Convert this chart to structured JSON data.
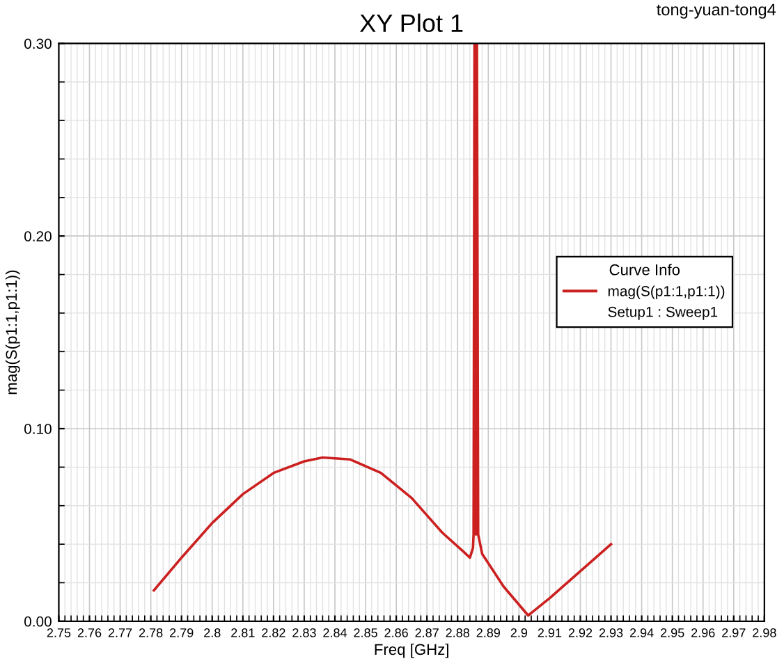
{
  "chart_data": {
    "type": "line",
    "title": "XY Plot 1",
    "xlabel": "Freq [GHz]",
    "ylabel": "mag(S(p1:1,p1:1))",
    "legend_title": "Curve Info",
    "annotations": [
      "tong-yuan-tong4",
      "Setup1 : Sweep1"
    ],
    "series": [
      {
        "name": "mag(S(p1:1,p1:1))",
        "color": "#cc2020",
        "x": [
          2.781,
          2.79,
          2.8,
          2.81,
          2.82,
          2.83,
          2.836,
          2.845,
          2.855,
          2.865,
          2.875,
          2.882,
          2.884,
          2.885,
          2.8852,
          2.8855,
          2.886,
          2.8863,
          2.8867,
          2.888,
          2.895,
          2.903,
          2.91,
          2.92,
          2.93
        ],
        "values": [
          0.016,
          0.033,
          0.051,
          0.066,
          0.077,
          0.083,
          0.085,
          0.084,
          0.077,
          0.064,
          0.046,
          0.036,
          0.033,
          0.038,
          0.045,
          0.3,
          0.045,
          0.3,
          0.045,
          0.035,
          0.018,
          0.003,
          0.012,
          0.026,
          0.04
        ]
      }
    ],
    "xlim": [
      2.75,
      2.98
    ],
    "xticks": [
      2.75,
      2.76,
      2.77,
      2.78,
      2.79,
      2.8,
      2.81,
      2.82,
      2.83,
      2.84,
      2.85,
      2.86,
      2.87,
      2.88,
      2.89,
      2.9,
      2.91,
      2.92,
      2.93,
      2.94,
      2.95,
      2.96,
      2.97,
      2.98
    ],
    "ylim": [
      0,
      0.3
    ],
    "yticks": [
      {
        "value": 0,
        "label": "0.00"
      },
      {
        "value": 0.1,
        "label": "0.10"
      },
      {
        "value": 0.2,
        "label": "0.20"
      },
      {
        "value": 0.3,
        "label": "0.30"
      }
    ],
    "grid": true,
    "legend": "right",
    "marker": "none",
    "line_style": "solid"
  }
}
